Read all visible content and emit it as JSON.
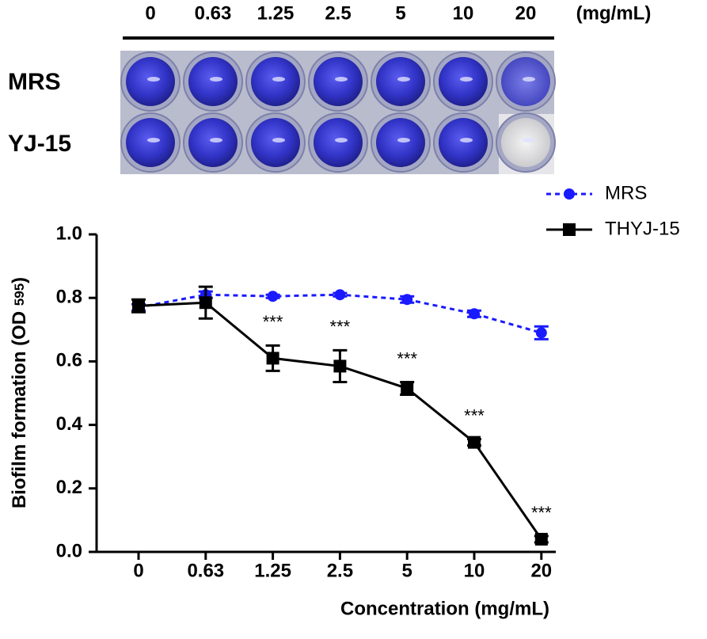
{
  "plate": {
    "concentrations": [
      "0",
      "0.63",
      "1.25",
      "2.5",
      "5",
      "10",
      "20"
    ],
    "unit": "(mg/mL)",
    "rows": [
      "MRS",
      "YJ-15"
    ]
  },
  "chart_data": {
    "type": "line",
    "xlabel": "Concentration (mg/mL)",
    "ylabel": [
      "Biofilm formation (OD ",
      "595",
      ")"
    ],
    "categories": [
      "0",
      "0.63",
      "1.25",
      "2.5",
      "5",
      "10",
      "20"
    ],
    "series": [
      {
        "name": "MRS",
        "color": "#1a1aff",
        "dashed": true,
        "marker": "circle",
        "values": [
          0.77,
          0.81,
          0.805,
          0.81,
          0.795,
          0.75,
          0.69
        ],
        "errors": [
          0.01,
          0.01,
          0.005,
          0.005,
          0.01,
          0.01,
          0.02
        ]
      },
      {
        "name": "THYJ-15",
        "color": "#000000",
        "dashed": false,
        "marker": "square",
        "values": [
          0.775,
          0.785,
          0.61,
          0.585,
          0.515,
          0.345,
          0.04
        ],
        "errors": [
          0.02,
          0.05,
          0.04,
          0.05,
          0.02,
          0.01,
          0.01
        ]
      }
    ],
    "significance": [
      null,
      null,
      "***",
      "***",
      "***",
      "***",
      "***"
    ],
    "ylim": [
      0,
      1.0
    ],
    "yticks": [
      {
        "value": 0,
        "label": "0.0"
      },
      0.2,
      0.4,
      0.6,
      0.8,
      {
        "value": 1.0,
        "label": "1.0"
      }
    ],
    "legend": "upper right"
  }
}
